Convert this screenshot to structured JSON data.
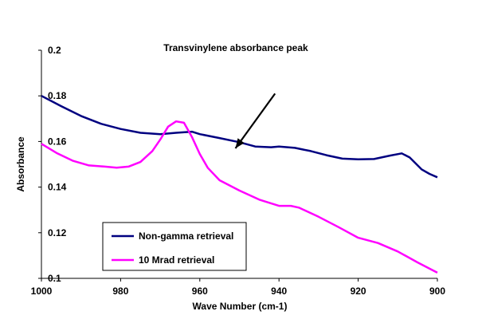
{
  "chart_data": {
    "type": "line",
    "title": "",
    "annotation": "Transvinylene absorbance peak",
    "xlabel": "Wave Number (cm-1)",
    "ylabel": "Absorbance",
    "xlim": [
      1000,
      900
    ],
    "ylim": [
      0.1,
      0.2
    ],
    "x_reversed": true,
    "x_ticks": [
      1000,
      980,
      960,
      940,
      920,
      900
    ],
    "x_tick_labels": [
      "1000",
      "980",
      "960",
      "940",
      "920",
      "900"
    ],
    "y_ticks": [
      0.1,
      0.12,
      0.14,
      0.16,
      0.18,
      0.2
    ],
    "y_tick_labels": [
      "0.1",
      "0.12",
      "0.14",
      "0.16",
      "0.18",
      "0.2"
    ],
    "grid": false,
    "legend_position": "bottom-left",
    "arrow": {
      "from": [
        941,
        0.181
      ],
      "to": [
        951,
        0.157
      ]
    },
    "series": [
      {
        "name": "Non-gamma retrieval",
        "color": "#000080",
        "x": [
          1000,
          995,
          990,
          985,
          980,
          975,
          970,
          966,
          962,
          960,
          955,
          950,
          946,
          942,
          940,
          936,
          932,
          928,
          924,
          920,
          916,
          912,
          909,
          907,
          904,
          902,
          900
        ],
        "y": [
          0.18,
          0.1755,
          0.1712,
          0.1678,
          0.1655,
          0.1638,
          0.1632,
          0.1638,
          0.1643,
          0.1632,
          0.1615,
          0.1597,
          0.1578,
          0.1575,
          0.1578,
          0.1572,
          0.1558,
          0.154,
          0.1525,
          0.1522,
          0.1523,
          0.1538,
          0.1548,
          0.153,
          0.1478,
          0.1458,
          0.1443
        ]
      },
      {
        "name": "10 Mrad retrieval",
        "color": "#ff00ff",
        "x": [
          1000,
          996,
          992,
          988,
          984,
          981,
          978,
          975,
          972,
          970,
          968,
          966,
          964,
          962,
          960,
          958,
          955,
          950,
          945,
          940,
          937,
          935,
          930,
          925,
          920,
          915,
          910,
          905,
          900
        ],
        "y": [
          0.159,
          0.1548,
          0.1515,
          0.1495,
          0.149,
          0.1485,
          0.149,
          0.151,
          0.1558,
          0.1608,
          0.1665,
          0.1688,
          0.1682,
          0.162,
          0.1545,
          0.1485,
          0.143,
          0.1385,
          0.1345,
          0.1318,
          0.1318,
          0.131,
          0.127,
          0.1225,
          0.1178,
          0.1155,
          0.1118,
          0.107,
          0.1025
        ]
      }
    ]
  }
}
